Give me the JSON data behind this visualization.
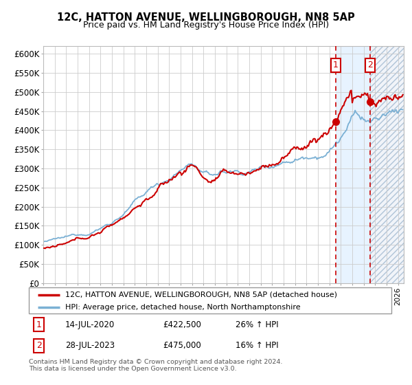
{
  "title": "12C, HATTON AVENUE, WELLINGBOROUGH, NN8 5AP",
  "subtitle": "Price paid vs. HM Land Registry's House Price Index (HPI)",
  "legend_line1": "12C, HATTON AVENUE, WELLINGBOROUGH, NN8 5AP (detached house)",
  "legend_line2": "HPI: Average price, detached house, North Northamptonshire",
  "transaction1_date": "14-JUL-2020",
  "transaction1_price": 422500,
  "transaction1_hpi": "26% ↑ HPI",
  "transaction2_date": "28-JUL-2023",
  "transaction2_price": 475000,
  "transaction2_hpi": "16% ↑ HPI",
  "footer": "Contains HM Land Registry data © Crown copyright and database right 2024.\nThis data is licensed under the Open Government Licence v3.0.",
  "red_color": "#cc0000",
  "blue_color": "#7ab0d4",
  "bg_span_color": "#ddeeff",
  "hatch_bg_color": "#e8eef5",
  "ylim": [
    0,
    620000
  ],
  "yticks": [
    0,
    50000,
    100000,
    150000,
    200000,
    250000,
    300000,
    350000,
    400000,
    450000,
    500000,
    550000,
    600000
  ],
  "xlim_start": 1995.0,
  "xlim_end": 2026.5,
  "transaction1_x": 2020.54,
  "transaction2_x": 2023.57,
  "box1_label": "1",
  "box2_label": "2",
  "font_family": "DejaVu Sans"
}
